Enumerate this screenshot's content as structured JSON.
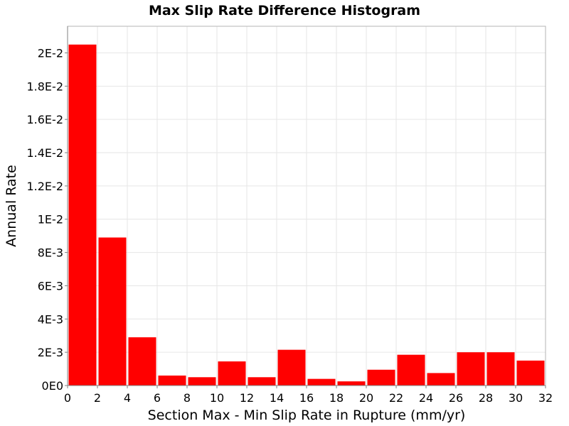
{
  "chart_data": {
    "type": "bar",
    "title": "Max Slip Rate Difference Histogram",
    "xlabel": "Section Max - Min Slip Rate in Rupture (mm/yr)",
    "ylabel": "Annual Rate",
    "xlim": [
      0,
      32
    ],
    "ylim": [
      0,
      0.0216
    ],
    "bin_width": 2,
    "x": [
      1,
      3,
      5,
      7,
      9,
      11,
      13,
      15,
      17,
      19,
      21,
      23,
      25,
      27,
      29,
      31
    ],
    "values": [
      0.0205,
      0.0089,
      0.0029,
      0.0006,
      0.0005,
      0.00145,
      0.0005,
      0.00215,
      0.0004,
      0.00025,
      0.00095,
      0.00185,
      0.00075,
      0.002,
      0.002,
      0.0015
    ],
    "x_ticks": [
      0,
      2,
      4,
      6,
      8,
      10,
      12,
      14,
      16,
      18,
      20,
      22,
      24,
      26,
      28,
      30,
      32
    ],
    "x_tick_labels": [
      "0",
      "2",
      "4",
      "6",
      "8",
      "10",
      "12",
      "14",
      "16",
      "18",
      "20",
      "22",
      "24",
      "26",
      "28",
      "30",
      "32"
    ],
    "y_ticks": [
      0,
      0.002,
      0.004,
      0.006,
      0.008,
      0.01,
      0.012,
      0.014,
      0.016,
      0.018,
      0.02
    ],
    "y_tick_labels": [
      "0E0",
      "2E-3",
      "4E-3",
      "6E-3",
      "8E-3",
      "1E-2",
      "1.2E-2",
      "1.4E-2",
      "1.6E-2",
      "1.8E-2",
      "2E-2"
    ],
    "bar_color": "#ff0000",
    "grid": true,
    "legend": "none"
  }
}
